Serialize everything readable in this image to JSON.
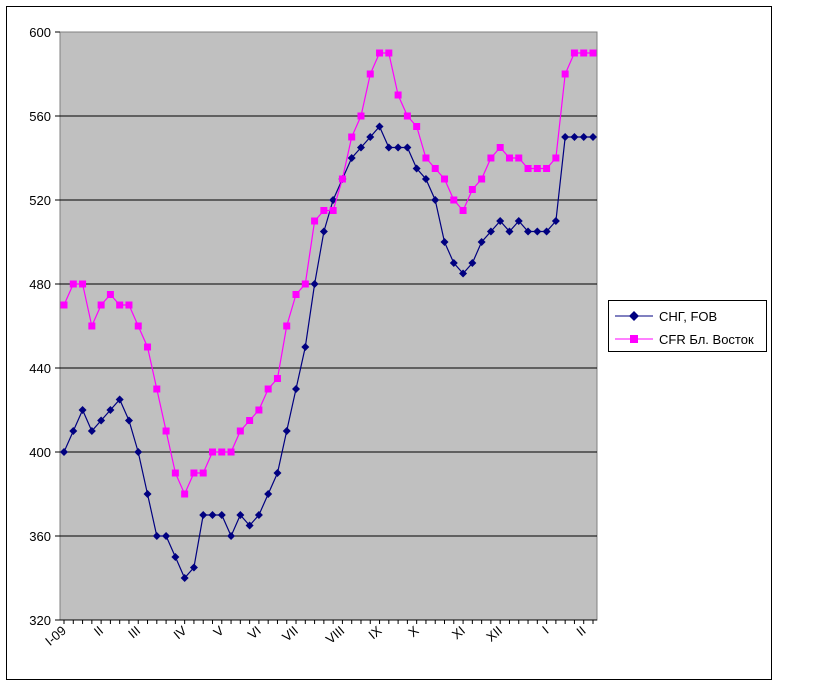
{
  "chart_data": {
    "type": "line",
    "title": "",
    "xlabel": "",
    "ylabel": "",
    "ylim": [
      320,
      600
    ],
    "yticks": [
      320,
      360,
      400,
      440,
      480,
      520,
      560,
      600
    ],
    "grid": true,
    "legend_position": "right",
    "plot_background": "#C0C0C0",
    "x_tick_labels": [
      "I-09",
      "II",
      "III",
      "IV",
      "V",
      "VI",
      "VII",
      "VIII",
      "IX",
      "X",
      "XI",
      "XII",
      "I",
      "II"
    ],
    "x_tick_index": [
      0,
      4,
      8,
      13,
      17,
      21,
      25,
      30,
      34,
      38,
      43,
      47,
      52,
      56
    ],
    "n_points": 58,
    "series": [
      {
        "name": "СНГ, FOB",
        "color": "#000080",
        "marker": "diamond",
        "values": [
          400,
          410,
          420,
          410,
          415,
          420,
          425,
          415,
          400,
          380,
          360,
          360,
          350,
          340,
          345,
          370,
          370,
          370,
          360,
          370,
          365,
          370,
          380,
          390,
          410,
          430,
          450,
          480,
          505,
          520,
          530,
          540,
          545,
          550,
          555,
          545,
          545,
          545,
          535,
          530,
          520,
          500,
          490,
          485,
          490,
          500,
          505,
          510,
          505,
          510,
          505,
          505,
          505,
          510,
          550,
          550,
          550,
          550
        ]
      },
      {
        "name": "CFR Бл. Восток",
        "color": "#FF00FF",
        "marker": "square",
        "values": [
          470,
          480,
          480,
          460,
          470,
          475,
          470,
          470,
          460,
          450,
          430,
          410,
          390,
          380,
          390,
          390,
          400,
          400,
          400,
          410,
          415,
          420,
          430,
          435,
          460,
          475,
          480,
          510,
          515,
          515,
          530,
          550,
          560,
          580,
          590,
          590,
          570,
          560,
          555,
          540,
          535,
          530,
          520,
          515,
          525,
          530,
          540,
          545,
          540,
          540,
          535,
          535,
          535,
          540,
          580,
          590,
          590,
          590
        ]
      }
    ]
  }
}
